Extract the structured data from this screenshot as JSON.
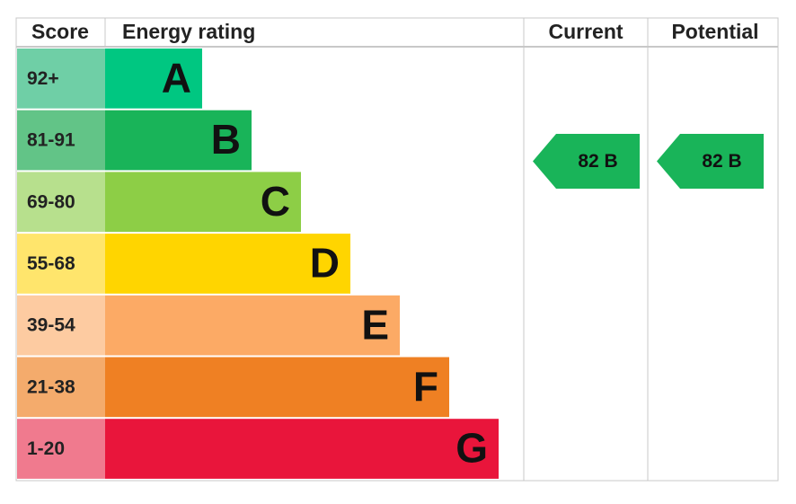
{
  "header": {
    "score": "Score",
    "rating": "Energy rating",
    "current": "Current",
    "potential": "Potential"
  },
  "bands": [
    {
      "score": "92+",
      "letter": "A",
      "color": "#00c781",
      "light": "#6fcfa6"
    },
    {
      "score": "81-91",
      "letter": "B",
      "color": "#19b459",
      "light": "#62c487"
    },
    {
      "score": "69-80",
      "letter": "C",
      "color": "#8dce46",
      "light": "#b7e08d"
    },
    {
      "score": "55-68",
      "letter": "D",
      "color": "#ffd500",
      "light": "#ffe56c"
    },
    {
      "score": "39-54",
      "letter": "E",
      "color": "#fcaa65",
      "light": "#fdcba1"
    },
    {
      "score": "21-38",
      "letter": "F",
      "color": "#ef8023",
      "light": "#f4ab6c"
    },
    {
      "score": "1-20",
      "letter": "G",
      "color": "#e9153b",
      "light": "#f07a8e"
    }
  ],
  "current": {
    "label": "82 B",
    "color": "#19b459"
  },
  "potential": {
    "label": "82 B",
    "color": "#19b459"
  }
}
